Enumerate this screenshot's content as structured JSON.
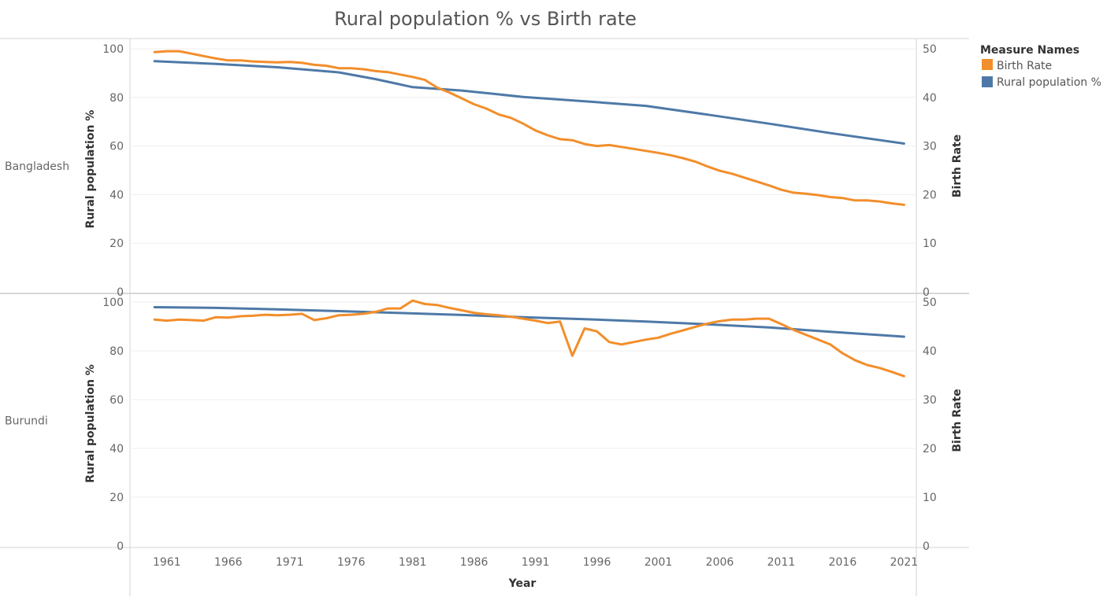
{
  "chart_data": {
    "type": "line",
    "title": "Rural population % vs Birth rate",
    "xlabel": "Year",
    "y_left_label": "Rural population %",
    "y_right_label": "Birth Rate",
    "y_left_range": [
      0,
      100
    ],
    "y_right_range": [
      0,
      50
    ],
    "y_left_ticks": [
      "0",
      "20",
      "40",
      "60",
      "80",
      "100"
    ],
    "y_right_ticks": [
      "0",
      "10",
      "20",
      "30",
      "40",
      "50"
    ],
    "x_range": [
      1958,
      2022
    ],
    "x_ticks": [
      "1961",
      "1966",
      "1971",
      "1976",
      "1981",
      "1986",
      "1991",
      "1996",
      "2001",
      "2006",
      "2011",
      "2016",
      "2021"
    ],
    "grid": "horizontal",
    "legend": {
      "title": "Measure Names",
      "position": "top-right",
      "items": [
        {
          "label": "Birth Rate",
          "color": "#f28e2b"
        },
        {
          "label": "Rural population %",
          "color": "#4e79a7"
        }
      ]
    },
    "panels": [
      {
        "name": "Bangladesh",
        "series": [
          {
            "name": "Rural population %",
            "axis": "left",
            "color": "#4e79a7",
            "points": [
              [
                1960,
                94.9
              ],
              [
                1965,
                93.8
              ],
              [
                1970,
                92.4
              ],
              [
                1975,
                90.3
              ],
              [
                1978,
                87.5
              ],
              [
                1981,
                84.2
              ],
              [
                1985,
                82.8
              ],
              [
                1990,
                80.2
              ],
              [
                1995,
                78.4
              ],
              [
                2000,
                76.5
              ],
              [
                2005,
                72.9
              ],
              [
                2010,
                69.2
              ],
              [
                2015,
                65.3
              ],
              [
                2021,
                61.0
              ]
            ]
          },
          {
            "name": "Birth Rate",
            "axis": "right",
            "color": "#f28e2b",
            "points": [
              [
                1960,
                49.3
              ],
              [
                1961,
                49.5
              ],
              [
                1962,
                49.5
              ],
              [
                1963,
                49.0
              ],
              [
                1964,
                48.5
              ],
              [
                1965,
                48.0
              ],
              [
                1966,
                47.6
              ],
              [
                1967,
                47.6
              ],
              [
                1968,
                47.4
              ],
              [
                1969,
                47.3
              ],
              [
                1970,
                47.2
              ],
              [
                1971,
                47.3
              ],
              [
                1972,
                47.1
              ],
              [
                1973,
                46.7
              ],
              [
                1974,
                46.5
              ],
              [
                1975,
                46.0
              ],
              [
                1976,
                46.0
              ],
              [
                1977,
                45.8
              ],
              [
                1978,
                45.4
              ],
              [
                1979,
                45.2
              ],
              [
                1980,
                44.7
              ],
              [
                1981,
                44.2
              ],
              [
                1982,
                43.6
              ],
              [
                1983,
                42.0
              ],
              [
                1984,
                41.0
              ],
              [
                1985,
                39.8
              ],
              [
                1986,
                38.6
              ],
              [
                1987,
                37.7
              ],
              [
                1988,
                36.5
              ],
              [
                1989,
                35.8
              ],
              [
                1990,
                34.6
              ],
              [
                1991,
                33.2
              ],
              [
                1992,
                32.2
              ],
              [
                1993,
                31.4
              ],
              [
                1994,
                31.2
              ],
              [
                1995,
                30.4
              ],
              [
                1996,
                30.0
              ],
              [
                1997,
                30.2
              ],
              [
                1998,
                29.8
              ],
              [
                1999,
                29.4
              ],
              [
                2000,
                29.0
              ],
              [
                2001,
                28.6
              ],
              [
                2002,
                28.1
              ],
              [
                2003,
                27.5
              ],
              [
                2004,
                26.8
              ],
              [
                2005,
                25.8
              ],
              [
                2006,
                24.9
              ],
              [
                2007,
                24.3
              ],
              [
                2008,
                23.5
              ],
              [
                2009,
                22.7
              ],
              [
                2010,
                21.9
              ],
              [
                2011,
                21.0
              ],
              [
                2012,
                20.4
              ],
              [
                2013,
                20.2
              ],
              [
                2014,
                19.9
              ],
              [
                2015,
                19.5
              ],
              [
                2016,
                19.3
              ],
              [
                2017,
                18.8
              ],
              [
                2018,
                18.8
              ],
              [
                2019,
                18.6
              ],
              [
                2020,
                18.2
              ],
              [
                2021,
                17.9
              ]
            ]
          }
        ]
      },
      {
        "name": "Burundi",
        "series": [
          {
            "name": "Rural population %",
            "axis": "left",
            "color": "#4e79a7",
            "points": [
              [
                1960,
                97.9
              ],
              [
                1965,
                97.6
              ],
              [
                1970,
                97.0
              ],
              [
                1975,
                96.3
              ],
              [
                1980,
                95.5
              ],
              [
                1985,
                94.7
              ],
              [
                1990,
                93.8
              ],
              [
                1995,
                93.0
              ],
              [
                2000,
                92.0
              ],
              [
                2005,
                90.9
              ],
              [
                2010,
                89.6
              ],
              [
                2015,
                87.8
              ],
              [
                2021,
                85.8
              ]
            ]
          },
          {
            "name": "Birth Rate",
            "axis": "right",
            "color": "#f28e2b",
            "points": [
              [
                1960,
                46.4
              ],
              [
                1961,
                46.2
              ],
              [
                1962,
                46.4
              ],
              [
                1963,
                46.3
              ],
              [
                1964,
                46.2
              ],
              [
                1965,
                46.9
              ],
              [
                1966,
                46.8
              ],
              [
                1967,
                47.1
              ],
              [
                1968,
                47.2
              ],
              [
                1969,
                47.4
              ],
              [
                1970,
                47.3
              ],
              [
                1971,
                47.4
              ],
              [
                1972,
                47.6
              ],
              [
                1973,
                46.3
              ],
              [
                1974,
                46.7
              ],
              [
                1975,
                47.3
              ],
              [
                1976,
                47.4
              ],
              [
                1977,
                47.6
              ],
              [
                1978,
                48.0
              ],
              [
                1979,
                48.7
              ],
              [
                1980,
                48.7
              ],
              [
                1981,
                50.3
              ],
              [
                1982,
                49.6
              ],
              [
                1983,
                49.4
              ],
              [
                1984,
                48.8
              ],
              [
                1985,
                48.3
              ],
              [
                1986,
                47.8
              ],
              [
                1987,
                47.5
              ],
              [
                1988,
                47.3
              ],
              [
                1989,
                47.0
              ],
              [
                1990,
                46.6
              ],
              [
                1991,
                46.2
              ],
              [
                1992,
                45.7
              ],
              [
                1993,
                46.0
              ],
              [
                1994,
                39.0
              ],
              [
                1995,
                44.6
              ],
              [
                1996,
                44.0
              ],
              [
                1997,
                41.8
              ],
              [
                1998,
                41.3
              ],
              [
                1999,
                41.8
              ],
              [
                2000,
                42.3
              ],
              [
                2001,
                42.7
              ],
              [
                2002,
                43.5
              ],
              [
                2003,
                44.2
              ],
              [
                2004,
                44.9
              ],
              [
                2005,
                45.6
              ],
              [
                2006,
                46.1
              ],
              [
                2007,
                46.4
              ],
              [
                2008,
                46.4
              ],
              [
                2009,
                46.6
              ],
              [
                2010,
                46.6
              ],
              [
                2011,
                45.5
              ],
              [
                2012,
                44.3
              ],
              [
                2013,
                43.3
              ],
              [
                2014,
                42.3
              ],
              [
                2015,
                41.3
              ],
              [
                2016,
                39.5
              ],
              [
                2017,
                38.1
              ],
              [
                2018,
                37.1
              ],
              [
                2019,
                36.5
              ],
              [
                2020,
                35.7
              ],
              [
                2021,
                34.8
              ]
            ]
          }
        ]
      }
    ]
  }
}
